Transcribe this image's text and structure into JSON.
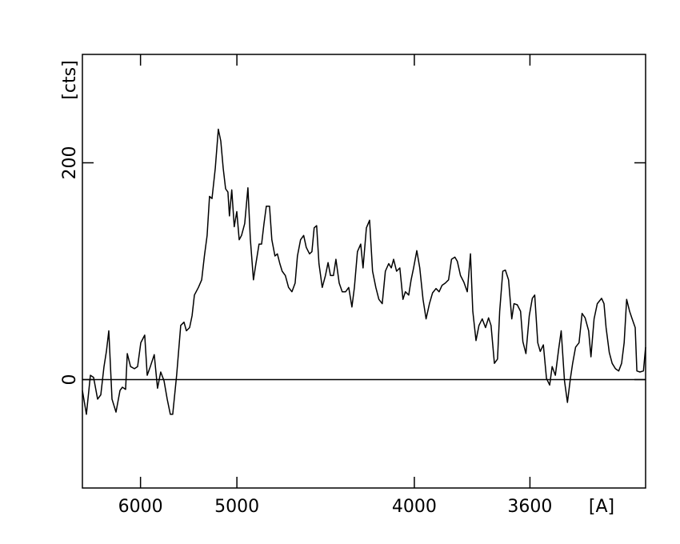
{
  "chart_data": {
    "type": "line",
    "xlabel": "[A]",
    "ylabel": "[cts]",
    "xscale": "inverse-square",
    "xlim": [
      7000,
      3300
    ],
    "xticks": [
      6000,
      5000,
      4000,
      3600
    ],
    "ylim": [
      -100,
      300
    ],
    "yticks": [
      0,
      200
    ],
    "color": "#000000",
    "zero_line": true,
    "x": [
      7000,
      6914,
      6832,
      6769,
      6691,
      6631,
      6573,
      6530,
      6488,
      6433,
      6367,
      6303,
      6265,
      6215,
      6190,
      6141,
      6085,
      6040,
      5996,
      5943,
      5911,
      5870,
      5820,
      5780,
      5741,
      5702,
      5665,
      5629,
      5602,
      5559,
      5515,
      5481,
      5456,
      5423,
      5398,
      5375,
      5336,
      5305,
      5279,
      5254,
      5232,
      5210,
      5181,
      5154,
      5133,
      5112,
      5092,
      5073,
      5060,
      5041,
      5021,
      5001,
      4982,
      4964,
      4939,
      4915,
      4897,
      4874,
      4856,
      4833,
      4815,
      4798,
      4782,
      4760,
      4744,
      4723,
      4707,
      4691,
      4676,
      4655,
      4635,
      4614,
      4594,
      4580,
      4561,
      4542,
      4527,
      4508,
      4494,
      4481,
      4467,
      4454,
      4436,
      4418,
      4404,
      4391,
      4375,
      4362,
      4345,
      4329,
      4312,
      4296,
      4280,
      4268,
      4253,
      4237,
      4226,
      4210,
      4195,
      4181,
      4166,
      4152,
      4137,
      4123,
      4108,
      4097,
      4087,
      4074,
      4060,
      4047,
      4037,
      4023,
      4013,
      4003,
      3990,
      3978,
      3965,
      3953,
      3940,
      3928,
      3915,
      3903,
      3892,
      3880,
      3868,
      3857,
      3845,
      3836,
      3825,
      3813,
      3801,
      3790,
      3782,
      3771,
      3761,
      3750,
      3739,
      3729,
      3721,
      3710,
      3700,
      3693,
      3683,
      3675,
      3665,
      3655,
      3648,
      3638,
      3628,
      3621,
      3612,
      3602,
      3593,
      3586,
      3577,
      3570,
      3561,
      3552,
      3543,
      3536,
      3527,
      3518,
      3511,
      3502,
      3494,
      3486,
      3480,
      3472,
      3463,
      3455,
      3447,
      3438,
      3432,
      3424,
      3416,
      3405,
      3399,
      3394,
      3386,
      3379,
      3371,
      3363,
      3356,
      3350,
      3344,
      3337,
      3331,
      3324,
      3320,
      3313,
      3305,
      3300
    ],
    "values": [
      -10,
      -32,
      4,
      2,
      -18,
      -14,
      12,
      26,
      45,
      -18,
      -30,
      -10,
      -7,
      -9,
      24,
      12,
      10,
      12,
      34,
      41,
      4,
      12,
      23,
      -8,
      7,
      -1,
      -18,
      -32,
      -32,
      4,
      50,
      53,
      45,
      48,
      59,
      78,
      85,
      92,
      114,
      133,
      169,
      167,
      195,
      231,
      220,
      195,
      176,
      173,
      151,
      175,
      141,
      155,
      129,
      133,
      144,
      177,
      130,
      92,
      107,
      125,
      125,
      144,
      160,
      160,
      129,
      114,
      116,
      107,
      100,
      96,
      85,
      81,
      89,
      114,
      129,
      133,
      122,
      116,
      118,
      140,
      142,
      107,
      85,
      96,
      108,
      96,
      96,
      111,
      89,
      81,
      81,
      85,
      67,
      85,
      118,
      125,
      103,
      140,
      147,
      100,
      85,
      74,
      70,
      100,
      107,
      103,
      111,
      100,
      103,
      74,
      81,
      78,
      92,
      103,
      119,
      103,
      74,
      56,
      70,
      80,
      84,
      81,
      87,
      89,
      92,
      111,
      113,
      109,
      96,
      90,
      81,
      116,
      63,
      36,
      50,
      56,
      48,
      57,
      50,
      15,
      19,
      63,
      100,
      101,
      92,
      56,
      70,
      69,
      63,
      35,
      24,
      59,
      75,
      78,
      34,
      26,
      32,
      1,
      -5,
      12,
      4,
      28,
      45,
      -1,
      -21,
      1,
      15,
      30,
      34,
      61,
      57,
      45,
      21,
      56,
      70,
      75,
      70,
      48,
      25,
      15,
      10,
      8,
      15,
      34,
      74,
      63,
      56,
      48,
      8,
      7,
      8,
      30
    ]
  }
}
